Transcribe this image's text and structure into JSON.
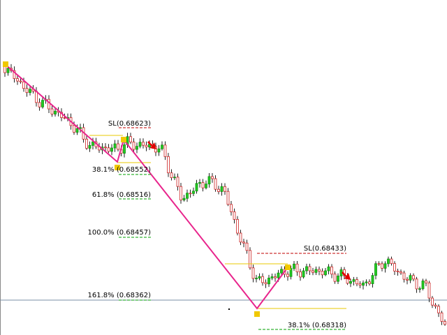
{
  "levels": {
    "sl_upper": "SL(0.68623)",
    "fib_38_upper": "38.1% (0.68552)",
    "fib_61": "61.8% (0.68516)",
    "fib_100": "100.0% (0.68457)",
    "fib_161": "161.8% (0.68362)",
    "sl_lower": "SL(0.68433)",
    "fib_38_lower": "38.1% (0.68318)"
  }
}
